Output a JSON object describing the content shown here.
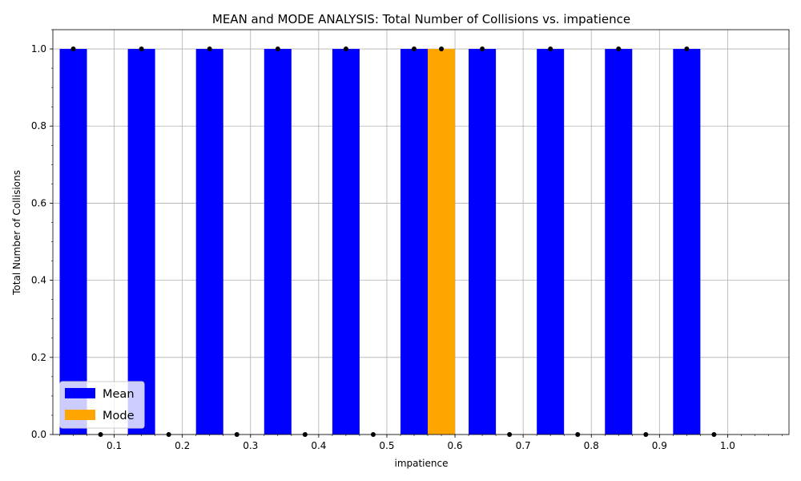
{
  "chart_data": {
    "type": "bar",
    "title": "MEAN and MODE ANALYSIS: Total Number of Collisions vs. impatience",
    "xlabel": "impatience",
    "ylabel": "Total Number of Collisions",
    "categories": [
      "0.1",
      "0.2",
      "0.3",
      "0.4",
      "0.5",
      "0.6",
      "0.7",
      "0.8",
      "0.9",
      "1.0"
    ],
    "series": [
      {
        "name": "Mean",
        "color": "#0000ff",
        "values": [
          1,
          1,
          1,
          1,
          1,
          1,
          1,
          1,
          1,
          1
        ]
      },
      {
        "name": "Mode",
        "color": "#ffa500",
        "values": [
          0,
          0,
          0,
          0,
          0,
          1,
          0,
          0,
          0,
          0
        ]
      }
    ],
    "xlim": [
      0.01,
      1.09
    ],
    "ylim": [
      0,
      1.05
    ],
    "xticks": [
      0.1,
      0.2,
      0.3,
      0.4,
      0.5,
      0.6,
      0.7,
      0.8,
      0.9,
      1.0
    ],
    "yticks": [
      0.0,
      0.2,
      0.4,
      0.6,
      0.8,
      1.0
    ],
    "ytick_labels": [
      "0.0",
      "0.2",
      "0.4",
      "0.6",
      "0.8",
      "1.0"
    ],
    "grid": true,
    "legend_position": "lower-left",
    "marker_color": "#000000"
  }
}
